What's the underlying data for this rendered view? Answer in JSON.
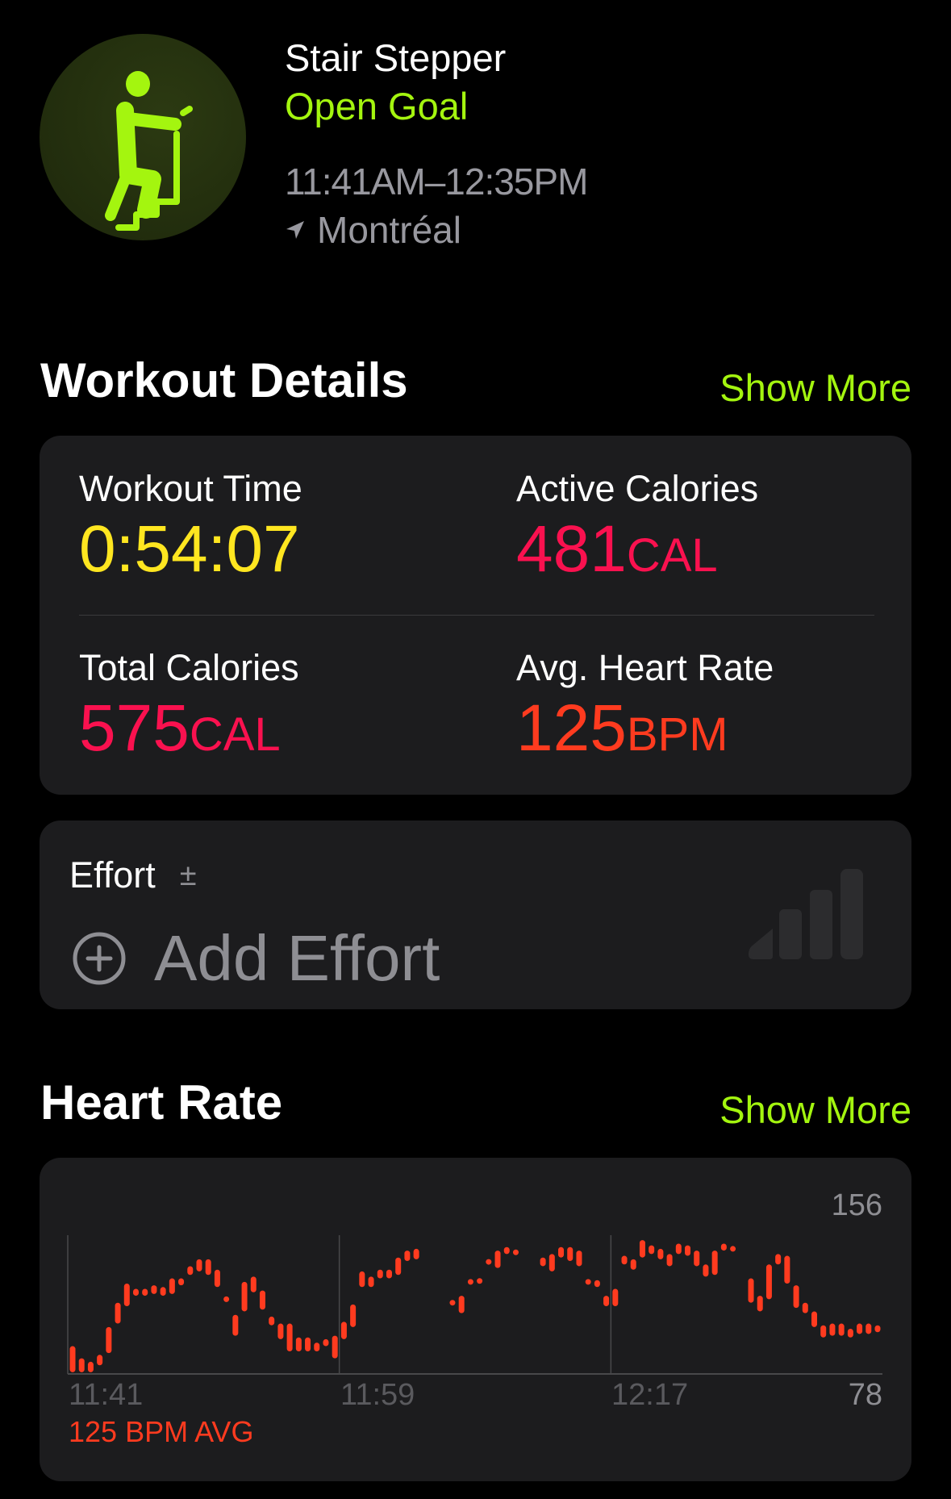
{
  "header": {
    "activity_icon": "stair-stepper-icon",
    "title": "Stair Stepper",
    "goal": "Open Goal",
    "time_range": "11:41AM–12:35PM",
    "location_icon": "location-arrow-icon",
    "location": "Montréal"
  },
  "colors": {
    "accent": "#a4f50f",
    "time": "#ffe620",
    "calories": "#fa114f",
    "heart": "#ff3b1f",
    "card": "#1c1c1e"
  },
  "workout_details": {
    "title": "Workout Details",
    "show_more": "Show More",
    "metrics": [
      {
        "label": "Workout Time",
        "value": "0:54:07",
        "unit": ""
      },
      {
        "label": "Active Calories",
        "value": "481",
        "unit": "CAL"
      },
      {
        "label": "Total Calories",
        "value": "575",
        "unit": "CAL"
      },
      {
        "label": "Avg. Heart Rate",
        "value": "125",
        "unit": "BPM"
      }
    ]
  },
  "effort": {
    "label": "Effort",
    "info_symbol": "±",
    "add_label": "Add Effort",
    "level": 0
  },
  "heart_rate": {
    "title": "Heart Rate",
    "show_more": "Show More",
    "avg_label": "125 BPM AVG"
  },
  "chart_data": {
    "type": "bar",
    "subtype": "range",
    "x_range": [
      "11:41",
      "12:35"
    ],
    "x_ticks": [
      "11:41",
      "11:59",
      "12:17"
    ],
    "ylim": [
      78,
      156
    ],
    "y_labels": {
      "max": "156",
      "min": "78"
    },
    "grid": "vertical",
    "color": "#ff3b1f",
    "ranges": [
      [
        79,
        94
      ],
      [
        79,
        87
      ],
      [
        79,
        85
      ],
      [
        83,
        89
      ],
      [
        90,
        105
      ],
      [
        107,
        119
      ],
      [
        117,
        130
      ],
      [
        123,
        127
      ],
      [
        123,
        127
      ],
      [
        124,
        129
      ],
      [
        123,
        128
      ],
      [
        124,
        133
      ],
      [
        129,
        133
      ],
      [
        135,
        140
      ],
      [
        137,
        144
      ],
      [
        135,
        144
      ],
      [
        128,
        138
      ],
      [
        120,
        122
      ],
      [
        100,
        112
      ],
      [
        114,
        131
      ],
      [
        125,
        134
      ],
      [
        115,
        126
      ],
      [
        106,
        111
      ],
      [
        98,
        107
      ],
      [
        91,
        107
      ],
      [
        91,
        99
      ],
      [
        91,
        99
      ],
      [
        91,
        96
      ],
      [
        94,
        98
      ],
      [
        87,
        100
      ],
      [
        98,
        108
      ],
      [
        105,
        118
      ],
      [
        128,
        137
      ],
      [
        128,
        134
      ],
      [
        133,
        138
      ],
      [
        133,
        138
      ],
      [
        135,
        145
      ],
      [
        143,
        149
      ],
      [
        144,
        150
      ],
      null,
      null,
      null,
      [
        118,
        120
      ],
      [
        113,
        123
      ],
      [
        130,
        132
      ],
      [
        130,
        133
      ],
      [
        141,
        144
      ],
      [
        139,
        149
      ],
      [
        147,
        151
      ],
      [
        147,
        149
      ],
      null,
      null,
      [
        140,
        145
      ],
      [
        137,
        147
      ],
      [
        145,
        151
      ],
      [
        143,
        151
      ],
      [
        140,
        149
      ],
      [
        130,
        132
      ],
      [
        128,
        132
      ],
      [
        117,
        123
      ],
      [
        117,
        127
      ],
      [
        141,
        146
      ],
      [
        138,
        144
      ],
      [
        145,
        155
      ],
      [
        147,
        152
      ],
      [
        144,
        150
      ],
      [
        140,
        147
      ],
      [
        147,
        153
      ],
      [
        146,
        152
      ],
      [
        140,
        149
      ],
      [
        134,
        141
      ],
      [
        135,
        149
      ],
      [
        149,
        153
      ],
      [
        149,
        151
      ],
      null,
      [
        119,
        133
      ],
      [
        114,
        123
      ],
      [
        121,
        141
      ],
      [
        141,
        147
      ],
      [
        130,
        146
      ],
      [
        116,
        129
      ],
      [
        113,
        119
      ],
      [
        105,
        114
      ],
      [
        99,
        106
      ],
      [
        100,
        107
      ],
      [
        100,
        107
      ],
      [
        99,
        104
      ],
      [
        101,
        107
      ],
      [
        101,
        107
      ],
      [
        102,
        106
      ]
    ]
  }
}
